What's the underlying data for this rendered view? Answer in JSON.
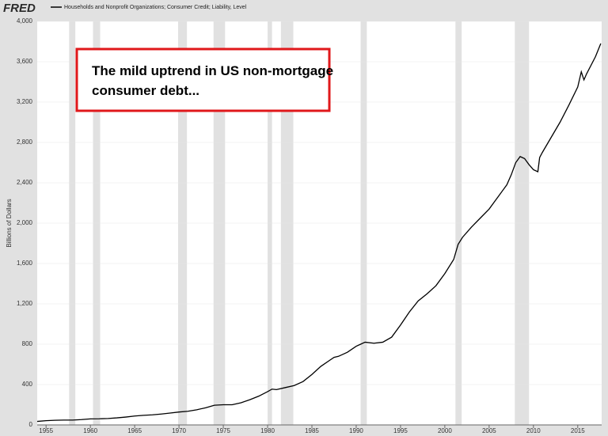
{
  "chart_data": {
    "type": "line",
    "logo": "FRED",
    "y_label": "Billions of Dollars",
    "annotation": [
      "The mild uptrend in US non-mortgage",
      "consumer debt..."
    ],
    "xlim": [
      1954,
      2017.7
    ],
    "xticks": [
      1955,
      1960,
      1965,
      1970,
      1975,
      1980,
      1985,
      1990,
      1995,
      2000,
      2005,
      2010,
      2015
    ],
    "ylim": [
      0,
      4000
    ],
    "yticks": [
      0,
      400,
      800,
      {
        "value": 1200,
        "label": "1,200"
      },
      {
        "value": 1600,
        "label": "1,600"
      },
      {
        "value": 2000,
        "label": "2,000"
      },
      {
        "value": 2400,
        "label": "2,400"
      },
      {
        "value": 2800,
        "label": "2,800"
      },
      {
        "value": 3200,
        "label": "3,200"
      },
      {
        "value": 3600,
        "label": "3,600"
      },
      {
        "value": 4000,
        "label": "4,000"
      }
    ],
    "grid": true,
    "recessions": [
      [
        1957.6,
        1958.3
      ],
      [
        1960.3,
        1961.1
      ],
      [
        1969.9,
        1970.9
      ],
      [
        1973.9,
        1975.2
      ],
      [
        1980.0,
        1980.5
      ],
      [
        1981.5,
        1982.9
      ],
      [
        1990.5,
        1991.2
      ],
      [
        2001.2,
        2001.9
      ],
      [
        2007.9,
        2009.5
      ]
    ],
    "x": [
      1954,
      1955,
      1956,
      1957,
      1958,
      1959,
      1960,
      1961,
      1962,
      1963,
      1964,
      1965,
      1966,
      1967,
      1968,
      1969,
      1970,
      1971,
      1972,
      1973,
      1974,
      1975,
      1976,
      1977,
      1978,
      1979,
      1980,
      1980.5,
      1981,
      1982,
      1983,
      1984,
      1985,
      1986,
      1987,
      1987.5,
      1988,
      1989,
      1990,
      1990.5,
      1991,
      1992,
      1993,
      1994,
      1995,
      1996,
      1997,
      1998,
      1999,
      2000,
      2001,
      2001.5,
      2002,
      2003,
      2004,
      2005,
      2006,
      2007,
      2007.5,
      2008,
      2008.5,
      2009,
      2009.5,
      2010,
      2010.5,
      2010.7,
      2011,
      2012,
      2013,
      2014,
      2015,
      2015.4,
      2015.7,
      2016,
      2017,
      2017.6
    ],
    "series": [
      {
        "name": "Households and Nonprofit Organizations; Consumer Credit; Liability, Level",
        "color": "#000000",
        "values": [
          35,
          42,
          46,
          48,
          48,
          53,
          60,
          61,
          64,
          70,
          78,
          88,
          95,
          100,
          108,
          118,
          128,
          135,
          150,
          170,
          195,
          200,
          200,
          220,
          250,
          285,
          330,
          355,
          350,
          370,
          390,
          430,
          500,
          580,
          640,
          670,
          680,
          720,
          780,
          800,
          820,
          810,
          820,
          870,
          990,
          1120,
          1230,
          1300,
          1380,
          1500,
          1640,
          1790,
          1860,
          1960,
          2050,
          2140,
          2260,
          2380,
          2480,
          2600,
          2660,
          2640,
          2580,
          2530,
          2510,
          2650,
          2700,
          2850,
          3000,
          3170,
          3350,
          3500,
          3420,
          3480,
          3650,
          3780
        ]
      }
    ]
  }
}
